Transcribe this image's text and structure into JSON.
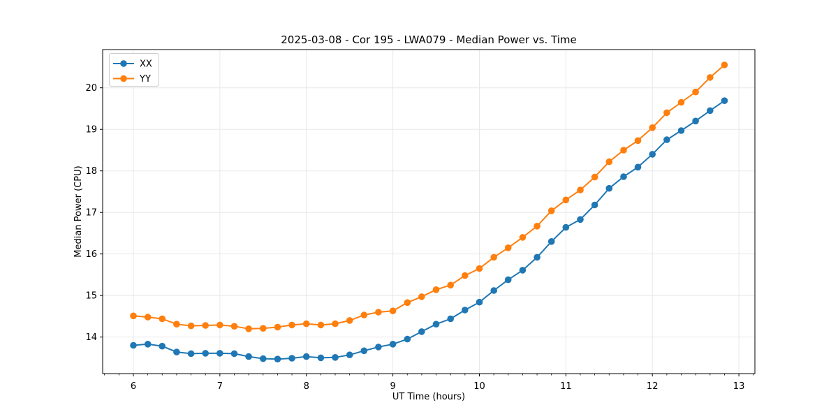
{
  "chart_data": {
    "type": "line",
    "title": "2025-03-08 - Cor 195 - LWA079 - Median Power vs. Time",
    "xlabel": "UT Time (hours)",
    "ylabel": "Median Power (CPU)",
    "xlim": [
      5.645,
      13.185
    ],
    "ylim": [
      13.12,
      20.92
    ],
    "grid": true,
    "legend_position": "upper-left",
    "x_major_ticks": [
      6,
      7,
      8,
      9,
      10,
      11,
      12,
      13
    ],
    "x_tick_labels": [
      "6",
      "7",
      "8",
      "9",
      "10",
      "11",
      "12",
      "13"
    ],
    "x_minor_step": 0.166667,
    "y_major_ticks": [
      14,
      15,
      16,
      17,
      18,
      19,
      20
    ],
    "y_tick_labels": [
      "14",
      "15",
      "16",
      "17",
      "18",
      "19",
      "20"
    ],
    "grid_color": "#e8e8e8",
    "spine_color": "#000000",
    "marker": "circle",
    "x": [
      6.0,
      6.167,
      6.333,
      6.5,
      6.667,
      6.833,
      7.0,
      7.167,
      7.333,
      7.5,
      7.667,
      7.833,
      8.0,
      8.167,
      8.333,
      8.5,
      8.667,
      8.833,
      9.0,
      9.167,
      9.333,
      9.5,
      9.667,
      9.833,
      10.0,
      10.167,
      10.333,
      10.5,
      10.667,
      10.833,
      11.0,
      11.167,
      11.333,
      11.5,
      11.667,
      11.833,
      12.0,
      12.167,
      12.333,
      12.5,
      12.667,
      12.833
    ],
    "series": [
      {
        "name": "XX",
        "color": "#1f77b4",
        "values": [
          13.8,
          13.83,
          13.78,
          13.64,
          13.6,
          13.61,
          13.61,
          13.6,
          13.53,
          13.48,
          13.47,
          13.49,
          13.53,
          13.5,
          13.51,
          13.57,
          13.67,
          13.76,
          13.83,
          13.95,
          14.13,
          14.31,
          14.44,
          14.65,
          14.84,
          15.12,
          15.38,
          15.61,
          15.92,
          16.3,
          16.64,
          16.83,
          17.18,
          17.58,
          17.86,
          18.09,
          18.4,
          18.75,
          18.97,
          19.2,
          19.45,
          19.69
        ]
      },
      {
        "name": "YY",
        "color": "#ff7f0e",
        "values": [
          14.51,
          14.48,
          14.44,
          14.31,
          14.27,
          14.28,
          14.29,
          14.26,
          14.2,
          14.21,
          14.24,
          14.29,
          14.32,
          14.29,
          14.32,
          14.4,
          14.53,
          14.6,
          14.63,
          14.83,
          14.97,
          15.14,
          15.25,
          15.48,
          15.65,
          15.92,
          16.15,
          16.4,
          16.67,
          17.04,
          17.3,
          17.54,
          17.85,
          18.22,
          18.5,
          18.73,
          19.04,
          19.4,
          19.65,
          19.9,
          20.25,
          20.55
        ]
      }
    ]
  }
}
